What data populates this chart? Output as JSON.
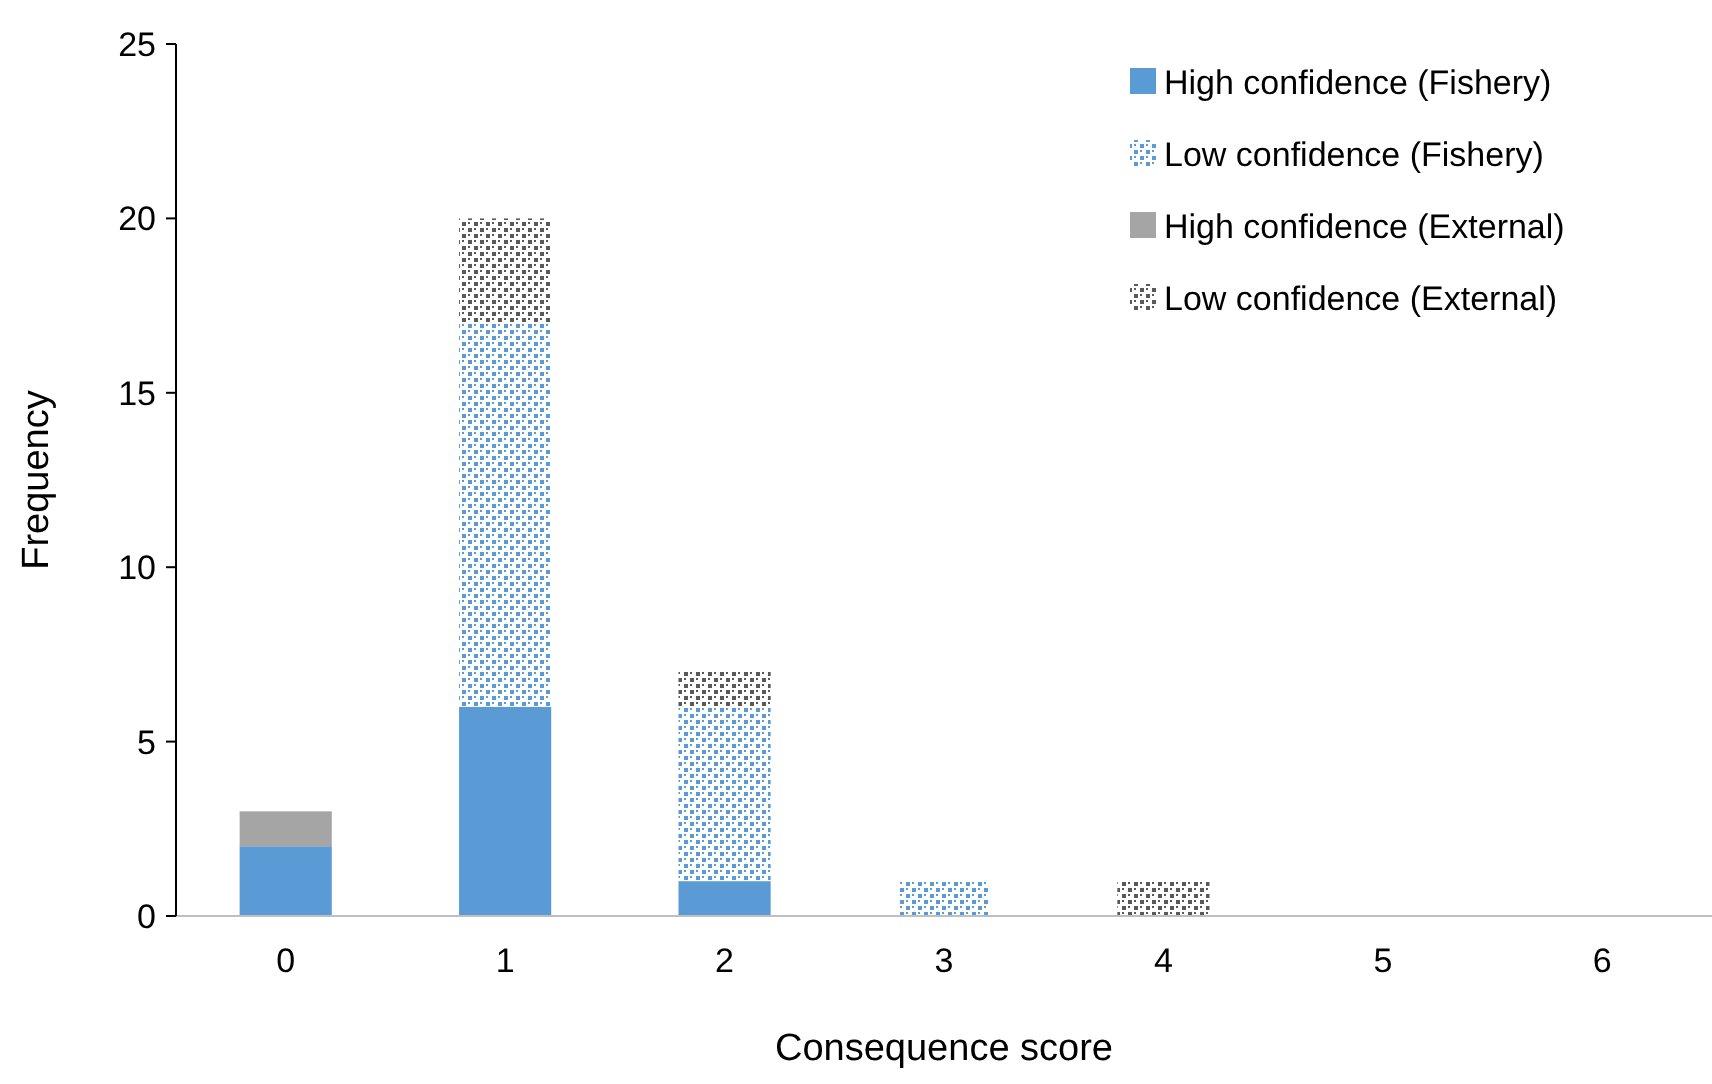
{
  "chart_data": {
    "type": "bar",
    "stacked": true,
    "xlabel": "Consequence score",
    "ylabel": "Frequency",
    "categories": [
      "0",
      "1",
      "2",
      "3",
      "4",
      "5",
      "6"
    ],
    "series": [
      {
        "name": "High confidence (Fishery)",
        "color": "#5b9bd5",
        "values": [
          2,
          6,
          1,
          0,
          0,
          0,
          0
        ]
      },
      {
        "name": "Low confidence (Fishery)",
        "color": "#5b9bd5",
        "values": [
          0,
          11,
          5,
          1,
          0,
          0,
          0
        ]
      },
      {
        "name": "High confidence (External)",
        "color": "#a5a5a5",
        "values": [
          1,
          0,
          0,
          0,
          0,
          0,
          0
        ]
      },
      {
        "name": "Low confidence (External)",
        "color": "#595959",
        "values": [
          0,
          3,
          1,
          0,
          1,
          0,
          0
        ]
      }
    ],
    "ylim": [
      0,
      25
    ],
    "yticks": [
      0,
      5,
      10,
      15,
      20,
      25
    ],
    "grid": false,
    "legend": "top right"
  }
}
